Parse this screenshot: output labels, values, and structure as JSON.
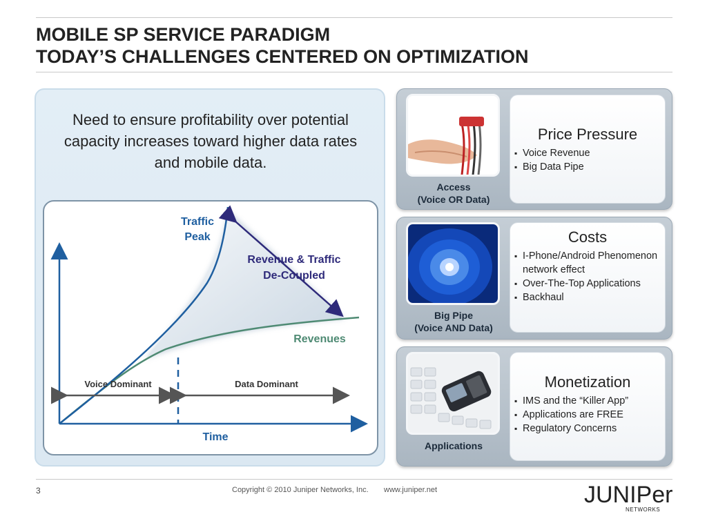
{
  "title": {
    "line1": "MOBILE SP SERVICE PARADIGM",
    "line2": "TODAY’S CHALLENGES CENTERED ON OPTIMIZATION"
  },
  "left": {
    "intro": "Need to ensure profitability over potential capacity increases toward higher data rates and mobile data.",
    "diagram": {
      "traffic_peak": [
        "Traffic",
        "Peak"
      ],
      "decoupled": [
        "Revenue & Traffic",
        "De-Coupled"
      ],
      "revenues": "Revenues",
      "voice_dominant": "Voice Dominant",
      "data_dominant": "Data Dominant",
      "time": "Time",
      "colors": {
        "traffic": "#1f5fa0",
        "revenue": "#4e8a73",
        "decoupled": "#2e2a7a",
        "arrow": "#555555"
      }
    }
  },
  "panels": [
    {
      "thumb_icon": "hand-cables-image",
      "label": [
        "Access",
        "(Voice OR Data)"
      ],
      "title": "Price Pressure",
      "bullets": [
        "Voice Revenue",
        "Big Data Pipe"
      ]
    },
    {
      "thumb_icon": "data-tunnel-image",
      "label": [
        "Big Pipe",
        "(Voice AND Data)"
      ],
      "title": "Costs",
      "bullets": [
        "I-Phone/Android Phenomenon network effect",
        "Over-The-Top Applications",
        "Backhaul"
      ]
    },
    {
      "thumb_icon": "phone-keyboard-image",
      "label": [
        "Applications"
      ],
      "title": "Monetization",
      "bullets": [
        "IMS and the “Killer App”",
        "Applications are FREE",
        "Regulatory Concerns"
      ]
    }
  ],
  "footer": {
    "page": "3",
    "copyright": "Copyright © 2010 Juniper Networks, Inc.",
    "url": "www.juniper.net",
    "logo": "JUNIPer",
    "logo_sub": "NETWORKS"
  }
}
